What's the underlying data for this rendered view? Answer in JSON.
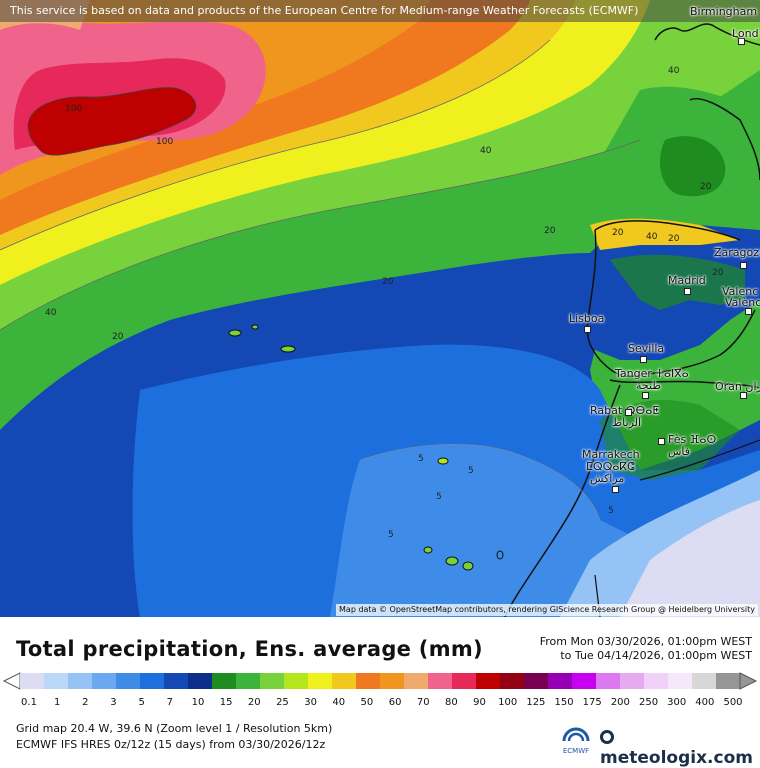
{
  "attribution_top": "This service is based on data and products of the European Centre for Medium-range Weather Forecasts (ECMWF)",
  "attribution_bottom": "Map data © OpenStreetMap contributors, rendering GIScience Research Group @ Heidelberg University",
  "cities": [
    {
      "name": "Birmingham"
    },
    {
      "name": "Lond"
    },
    {
      "name": "Zaragoza"
    },
    {
      "name": "Madrid"
    },
    {
      "name": "Valenc"
    },
    {
      "name": "Valènc"
    },
    {
      "name": "Lisboa"
    },
    {
      "name": "Sevilla"
    },
    {
      "name": "Tanger ⵜⴰⵏⴳⴰ"
    },
    {
      "name": "طنجة"
    },
    {
      "name": "Oran وهران"
    },
    {
      "name": "Rabat ⵕⴱⴰⵟ"
    },
    {
      "name": "الرباط"
    },
    {
      "name": "Fès ⴼⴰⵙ"
    },
    {
      "name": "فاس"
    },
    {
      "name": "Marrakech"
    },
    {
      "name": "ⵎⵕⵕⴰⴽⵛ"
    },
    {
      "name": "مراكش"
    }
  ],
  "contour_labels": [
    "100",
    "100",
    "40",
    "40",
    "40",
    "40",
    "20",
    "20",
    "20",
    "20",
    "20",
    "20",
    "20",
    "5",
    "5",
    "5",
    "5",
    "5"
  ],
  "title": "Total precipitation, Ens. average (mm)",
  "period": {
    "from": "From Mon 03/30/2026, 01:00pm WEST",
    "to": "to Tue 04/14/2026, 01:00pm WEST"
  },
  "legend": {
    "ticks": [
      "0.1",
      "1",
      "2",
      "3",
      "5",
      "7",
      "10",
      "15",
      "20",
      "25",
      "30",
      "40",
      "50",
      "60",
      "70",
      "80",
      "90",
      "100",
      "125",
      "150",
      "175",
      "200",
      "250",
      "300",
      "400",
      "500"
    ],
    "colors": [
      "#dcdcf2",
      "#bcd8f8",
      "#96c3f5",
      "#6aa8f0",
      "#3e8ce8",
      "#1e6fde",
      "#1448b4",
      "#0d2f8c",
      "#1e8c1e",
      "#3cb43c",
      "#78d23c",
      "#b4e61e",
      "#f0f01e",
      "#f0c81e",
      "#f0781e",
      "#f0961e",
      "#f0aa6e",
      "#f0648c",
      "#e6285a",
      "#be0000",
      "#960014",
      "#780050",
      "#9600b4",
      "#c800f0",
      "#dc78f0",
      "#e6aaf0",
      "#f0d2f8",
      "#f5e8fa",
      "#d7d7d7",
      "#969696"
    ]
  },
  "grid_info": "Grid map 20.4 W, 39.6 N (Zoom level 1 / Resolution 5km)",
  "model_info": "ECMWF IFS HRES 0z/12z (15 days) from  03/30/2026/12z",
  "logos": {
    "ecmwf": "ECMWF",
    "brand": "meteologix.com"
  }
}
